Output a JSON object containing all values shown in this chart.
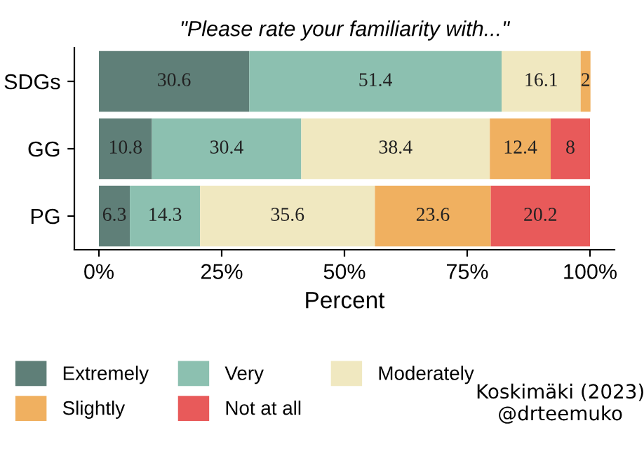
{
  "chart_data": {
    "type": "bar",
    "orientation": "horizontal",
    "stacked": true,
    "title": "\"Please rate your familiarity with...\"",
    "xlabel": "Percent",
    "categories": [
      "SDGs",
      "GG",
      "PG"
    ],
    "series": [
      {
        "name": "Extremely",
        "color": "#5f7f78",
        "values": [
          30.6,
          10.8,
          6.3
        ]
      },
      {
        "name": "Very",
        "color": "#8cc0b0",
        "values": [
          51.4,
          30.4,
          14.3
        ]
      },
      {
        "name": "Moderately",
        "color": "#f0e8c0",
        "values": [
          16.1,
          38.4,
          35.6
        ]
      },
      {
        "name": "Slightly",
        "color": "#f0b060",
        "values": [
          2,
          12.4,
          23.6
        ]
      },
      {
        "name": "Not at all",
        "color": "#e85a5a",
        "values": [
          null,
          8,
          20.2
        ]
      }
    ],
    "xlim": [
      -5,
      105
    ],
    "xticks": [
      {
        "value": 0,
        "label": "0%"
      },
      {
        "value": 25,
        "label": "25%"
      },
      {
        "value": 50,
        "label": "50%"
      },
      {
        "value": 75,
        "label": "75%"
      },
      {
        "value": 100,
        "label": "100%"
      }
    ],
    "data_labels": true,
    "grid": false,
    "legend": "bottom",
    "annotations": [
      "Koskimäki (2023)\n@drteemuko"
    ]
  }
}
